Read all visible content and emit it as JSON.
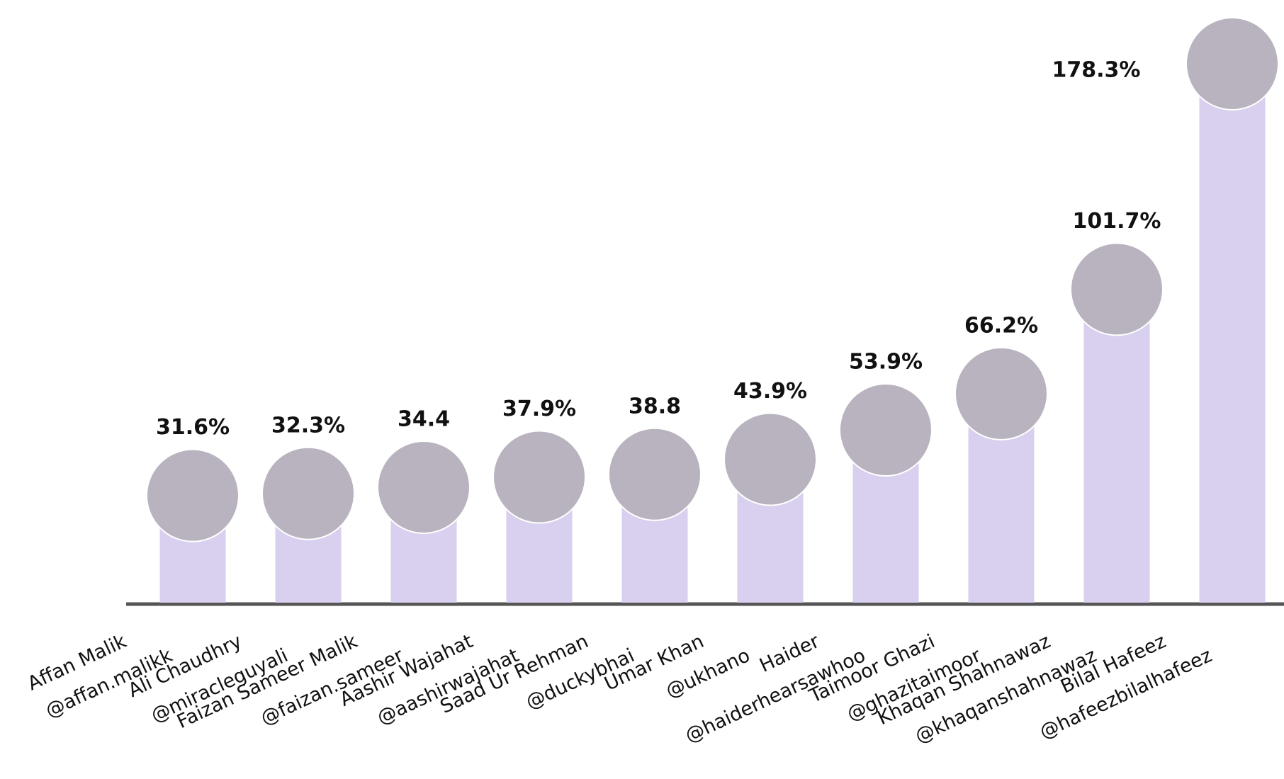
{
  "chart_data": {
    "type": "bar",
    "categories": [
      "Affan Malik",
      "Ali Chaudhry",
      "Faizan Sameer Malik",
      "Aashir Wajahat",
      "Saad Ur Rehman",
      "Umar Khan",
      "Haider",
      "Taimoor Ghazi",
      "Khaqan Shahnawaz",
      "Bilal Hafeez"
    ],
    "handles": [
      "@affan.malikk",
      "@miracleguyali",
      "@faizan.sameer",
      "@aashirwajahat",
      "@duckybhai",
      "@ukhano",
      "@haiderhearsawhoo",
      "@ghazitaimoor",
      "@khaqanshahnawaz",
      "@hafeezbilalhafeez"
    ],
    "values": [
      31.6,
      32.3,
      34.4,
      37.9,
      38.8,
      43.9,
      53.9,
      66.2,
      101.7,
      178.3
    ],
    "value_labels": [
      "31.6%",
      "32.3%",
      "34.4",
      "37.9%",
      "38.8",
      "43.9%",
      "53.9%",
      "66.2%",
      "101.7%",
      "178.3%"
    ],
    "color": "#d9cfee"
  }
}
